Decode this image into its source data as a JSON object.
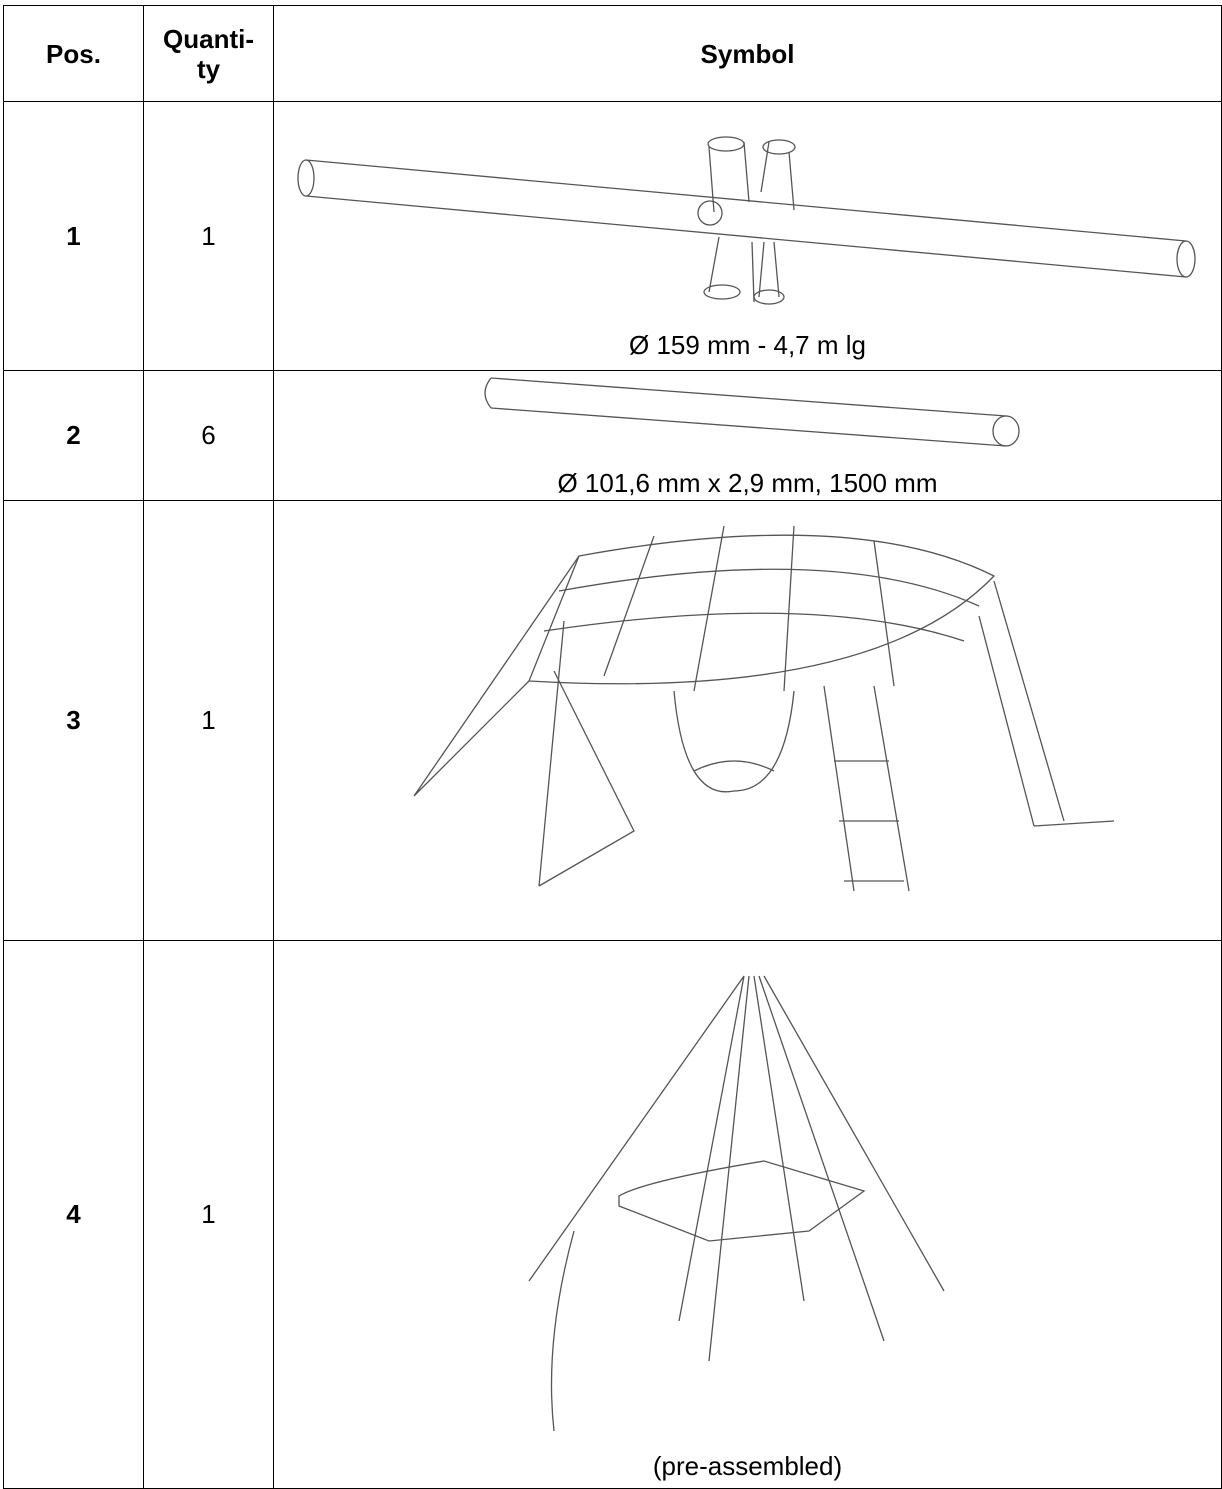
{
  "table": {
    "header": [
      "Pos.",
      "Quanti-\nty",
      "Symbol"
    ],
    "rows": [
      {
        "pos": "1",
        "quantity": "1",
        "caption": "Ø 159 mm - 4,7 m lg"
      },
      {
        "pos": "2",
        "quantity": "6",
        "caption": "Ø 101,6 mm x 2,9 mm, 1500 mm"
      },
      {
        "pos": "3",
        "quantity": "1"
      },
      {
        "pos": "4",
        "quantity": "1",
        "caption": "(pre-assembled)"
      }
    ]
  }
}
